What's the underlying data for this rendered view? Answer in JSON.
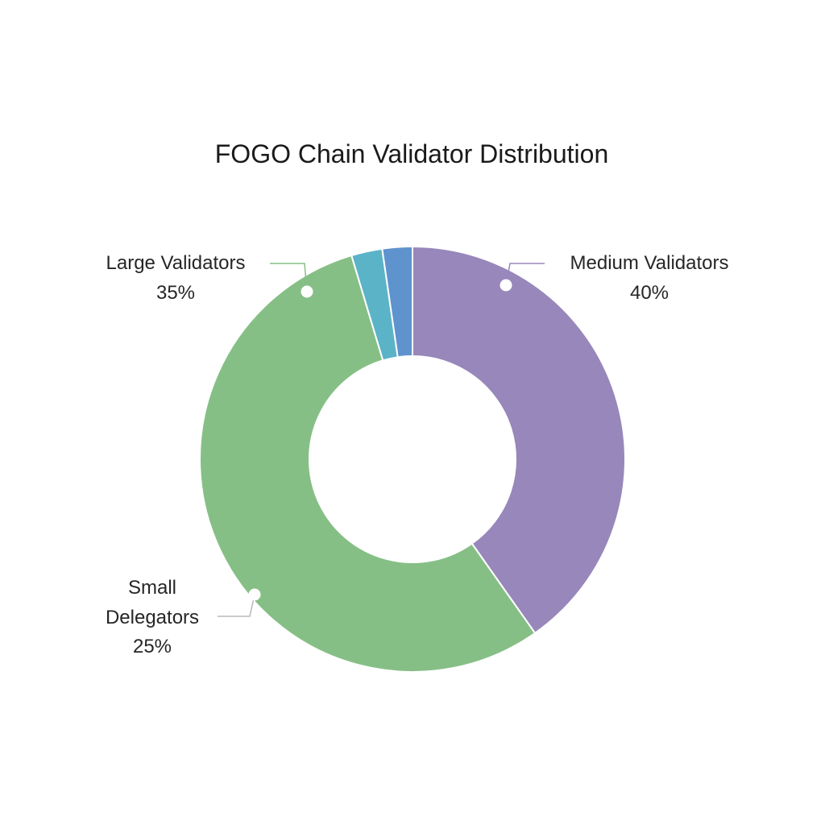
{
  "chart_data": {
    "type": "pie",
    "variant": "donut",
    "title": "FOGO Chain Validator Distribution",
    "slices": [
      {
        "label": "Medium Validators",
        "value": 40,
        "value_label": "40%",
        "color": "#9887BA"
      },
      {
        "label": "Small Delegators",
        "value": 25,
        "value_label": "25%",
        "color": "#86BF86"
      },
      {
        "label": "Large Validators",
        "value": 35,
        "value_label": "35%",
        "color": "#86BF86"
      },
      {
        "label": "",
        "value": 1,
        "value_label": "",
        "color": "#5BB3C7"
      },
      {
        "label": "",
        "value": 1,
        "value_label": "",
        "color": "#5E93CE"
      }
    ],
    "rendered_slices": [
      {
        "ref": 0,
        "fraction": 0.4023,
        "color": "#9887BA"
      },
      {
        "ref": 1,
        "fraction": 0.5514,
        "color": "#86BF86"
      },
      {
        "ref": 3,
        "fraction": 0.0235,
        "color": "#5BB3C7"
      },
      {
        "ref": 4,
        "fraction": 0.0228,
        "color": "#5E93CE"
      }
    ],
    "labels": [
      {
        "name_lines": [
          "Medium Validators"
        ],
        "value_label": "40%",
        "line_color": "#9887BA",
        "side": "right"
      },
      {
        "name_lines": [
          "Large Validators"
        ],
        "value_label": "35%",
        "line_color": "#86BF86",
        "side": "left"
      },
      {
        "name_lines": [
          "Small",
          "Delegators"
        ],
        "value_label": "25%",
        "line_color": "#b8b8b8",
        "side": "left"
      }
    ],
    "legend": "none",
    "separator_color": "#ffffff"
  }
}
